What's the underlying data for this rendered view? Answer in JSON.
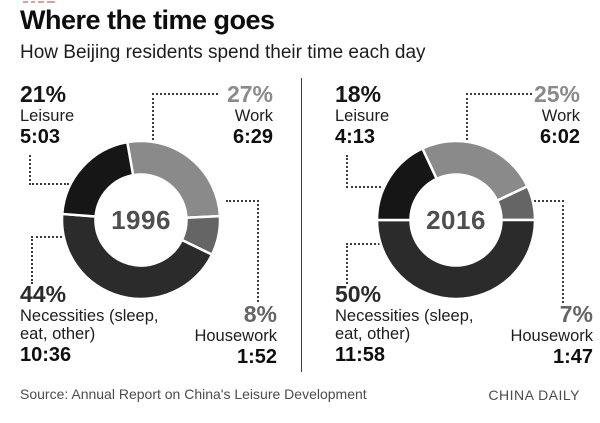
{
  "header": {
    "title": "Where the time goes",
    "subtitle": "How Beijing residents spend their time each day"
  },
  "footer": {
    "source": "Source: Annual Report on China's Leisure Development",
    "credit": "CHINA DAILY"
  },
  "colors": {
    "work": "#8a8a8a",
    "housework": "#656565",
    "necessities": "#2b2b2b",
    "leisure": "#161616",
    "year_text": "#4f4f4f",
    "dotted_line": "#3c3c3c",
    "top_marks_red": "#c05050"
  },
  "chart_data": [
    {
      "type": "pie",
      "subtype": "donut",
      "year": "1996",
      "start_angle_deg": -10,
      "order": [
        "work",
        "housework",
        "necessities",
        "leisure"
      ],
      "segments": {
        "leisure": {
          "pct": 21,
          "pct_label": "21%",
          "label": "Leisure",
          "time": "5:03"
        },
        "work": {
          "pct": 27,
          "pct_label": "27%",
          "label": "Work",
          "time": "6:29"
        },
        "necessities": {
          "pct": 44,
          "pct_label": "44%",
          "label": "Necessities (sleep, eat, other)",
          "label_lines": [
            "Necessities (sleep,",
            "eat, other)"
          ],
          "time": "10:36"
        },
        "housework": {
          "pct": 8,
          "pct_label": "8%",
          "label": "Housework",
          "time": "1:52"
        }
      }
    },
    {
      "type": "pie",
      "subtype": "donut",
      "year": "2016",
      "start_angle_deg": -25.2,
      "order": [
        "work",
        "housework",
        "necessities",
        "leisure"
      ],
      "segments": {
        "leisure": {
          "pct": 18,
          "pct_label": "18%",
          "label": "Leisure",
          "time": "4:13"
        },
        "work": {
          "pct": 25,
          "pct_label": "25%",
          "label": "Work",
          "time": "6:02"
        },
        "necessities": {
          "pct": 50,
          "pct_label": "50%",
          "label": "Necessities (sleep, eat, other)",
          "label_lines": [
            "Necessities (sleep,",
            "eat, other)"
          ],
          "time": "11:58"
        },
        "housework": {
          "pct": 7,
          "pct_label": "7%",
          "label": "Housework",
          "time": "1:47"
        }
      }
    }
  ]
}
